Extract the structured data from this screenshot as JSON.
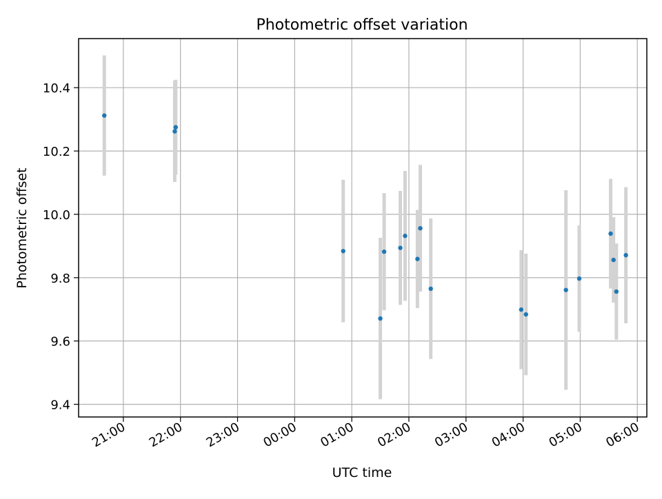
{
  "chart_data": {
    "type": "scatter",
    "title": "Photometric offset variation",
    "xlabel": "UTC time",
    "ylabel": "Photometric offset",
    "grid": true,
    "x_axis": {
      "ticks": [
        "2000-01-01T21:00",
        "2000-01-01T22:00",
        "2000-01-01T23:00",
        "2000-01-02T00:00",
        "2000-01-02T01:00",
        "2000-01-02T02:00",
        "2000-01-02T03:00",
        "2000-01-02T04:00",
        "2000-01-02T05:00",
        "2000-01-02T06:00"
      ],
      "tick_labels": [
        "21:00",
        "22:00",
        "23:00",
        "00:00",
        "01:00",
        "02:00",
        "03:00",
        "04:00",
        "05:00",
        "06:00"
      ],
      "xlim": [
        "2000-01-01T20:13",
        "2000-01-02T06:10"
      ]
    },
    "y_axis": {
      "ticks": [
        9.4,
        9.6,
        9.8,
        10.0,
        10.2,
        10.4
      ],
      "tick_labels": [
        "9.4",
        "9.6",
        "9.8",
        "10.0",
        "10.2",
        "10.4"
      ],
      "ylim": [
        9.36,
        10.555
      ]
    },
    "colors": {
      "marker": "#1f77b4",
      "errorbar": "#d3d3d3",
      "grid": "#b0b0b0"
    },
    "series": [
      {
        "points": [
          {
            "x": "2000-01-01T20:40",
            "y": 10.312,
            "err": 0.19
          },
          {
            "x": "2000-01-01T21:54",
            "y": 10.262,
            "err": 0.16
          },
          {
            "x": "2000-01-01T21:55",
            "y": 10.275,
            "err": 0.15
          },
          {
            "x": "2000-01-02T00:51",
            "y": 9.884,
            "err": 0.225
          },
          {
            "x": "2000-01-02T01:30",
            "y": 9.671,
            "err": 0.255
          },
          {
            "x": "2000-01-02T01:34",
            "y": 9.882,
            "err": 0.185
          },
          {
            "x": "2000-01-02T01:51",
            "y": 9.894,
            "err": 0.18
          },
          {
            "x": "2000-01-02T01:56",
            "y": 9.932,
            "err": 0.205
          },
          {
            "x": "2000-01-02T02:09",
            "y": 9.859,
            "err": 0.155
          },
          {
            "x": "2000-01-02T02:12",
            "y": 9.956,
            "err": 0.2
          },
          {
            "x": "2000-01-02T02:23",
            "y": 9.765,
            "err": 0.222
          },
          {
            "x": "2000-01-02T03:58",
            "y": 9.699,
            "err": 0.188
          },
          {
            "x": "2000-01-02T04:03",
            "y": 9.684,
            "err": 0.192
          },
          {
            "x": "2000-01-02T04:45",
            "y": 9.761,
            "err": 0.315
          },
          {
            "x": "2000-01-02T04:59",
            "y": 9.797,
            "err": 0.168
          },
          {
            "x": "2000-01-02T05:32",
            "y": 9.939,
            "err": 0.173
          },
          {
            "x": "2000-01-02T05:35",
            "y": 9.856,
            "err": 0.135
          },
          {
            "x": "2000-01-02T05:38",
            "y": 9.756,
            "err": 0.152
          },
          {
            "x": "2000-01-02T05:48",
            "y": 9.871,
            "err": 0.215
          }
        ]
      }
    ]
  }
}
